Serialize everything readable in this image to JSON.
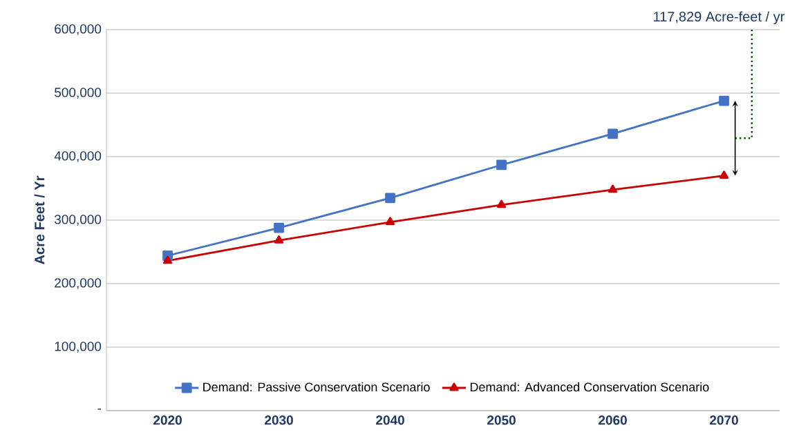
{
  "chart_data": {
    "type": "line",
    "ylabel": "Acre Feet / Yr",
    "categories": [
      "2020",
      "2030",
      "2040",
      "2050",
      "2060",
      "2070"
    ],
    "series": [
      {
        "name": "Demand: Passive Conservation Scenario",
        "color": "#4472c4",
        "marker": "square",
        "values": [
          244000,
          288000,
          335000,
          387000,
          436000,
          488000
        ]
      },
      {
        "name": "Demand: Advanced Conservation Scenario",
        "color": "#cc0000",
        "marker": "triangle",
        "values": [
          236000,
          268000,
          297000,
          324000,
          348000,
          370000
        ]
      }
    ],
    "ylim": [
      0,
      600000
    ],
    "yticks": [
      {
        "value": 0,
        "label": "-"
      },
      {
        "value": 100000,
        "label": "100,000"
      },
      {
        "value": 200000,
        "label": "200,000"
      },
      {
        "value": 300000,
        "label": "300,000"
      },
      {
        "value": 400000,
        "label": "400,000"
      },
      {
        "value": 500000,
        "label": "500,000"
      },
      {
        "value": 600000,
        "label": "600,000"
      }
    ],
    "grid": "y",
    "legend": "bottom",
    "line_style": "solid",
    "annotations": [
      "117,829 Acre-feet / yr"
    ]
  }
}
